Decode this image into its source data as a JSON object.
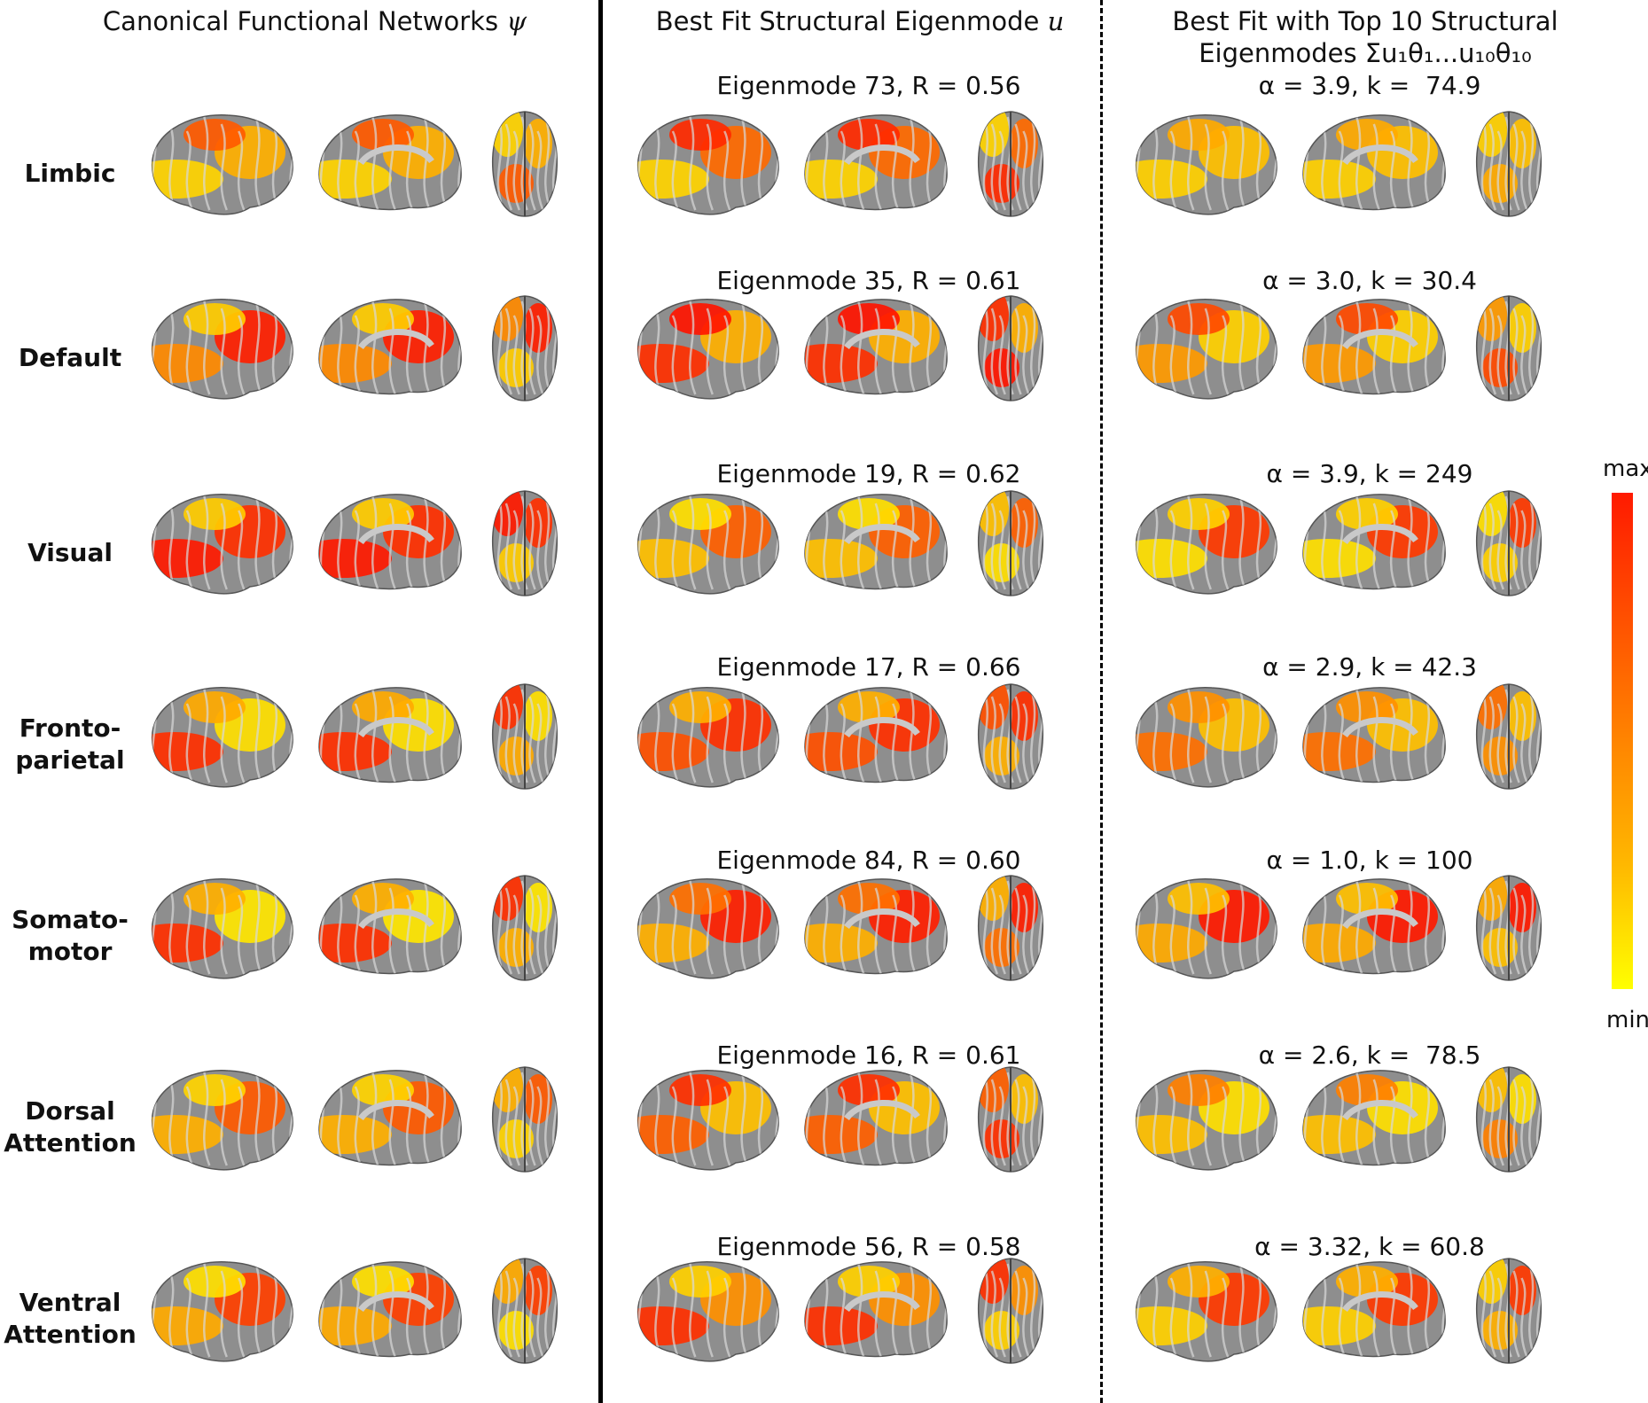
{
  "headers": {
    "col1": "Canonical Functional Networks",
    "col1_symbol": "ψ",
    "col2": "Best Fit Structural Eigenmode",
    "col2_symbol": "u",
    "col3_line1": "Best Fit with Top 10 Structural",
    "col3_line2": "Eigenmodes Σu₁θ₁...u₁₀θ₁₀"
  },
  "rows": [
    {
      "label": "Limbic",
      "eigen": "Eigenmode 73, R = 0.56",
      "fit": "α = 3.9, k =  74.9",
      "left": [
        "#ffd400",
        "#ffb000",
        "#ff5a00"
      ],
      "mid": [
        "#ffd400",
        "#ff6a00",
        "#ff2a00"
      ],
      "right": [
        "#ffd000",
        "#ffc000",
        "#ffaa00"
      ]
    },
    {
      "label": "Default",
      "eigen": "Eigenmode 35, R = 0.61",
      "fit": "α = 3.0, k = 30.4",
      "left": [
        "#ff8a00",
        "#ff2000",
        "#ffcc00"
      ],
      "mid": [
        "#ff3000",
        "#ffb000",
        "#ff1500"
      ],
      "right": [
        "#ff9a00",
        "#ffd000",
        "#ff4a00"
      ]
    },
    {
      "label": "Visual",
      "eigen": "Eigenmode 19, R = 0.62",
      "fit": "α = 3.9, k = 249",
      "left": [
        "#ff1a00",
        "#ff3000",
        "#ffcc00"
      ],
      "mid": [
        "#ffc000",
        "#ff6000",
        "#ffe000"
      ],
      "right": [
        "#ffe000",
        "#ff3a00",
        "#ffd000"
      ]
    },
    {
      "label": "Fronto-\nparietal",
      "eigen": "Eigenmode 17, R = 0.66",
      "fit": "α = 2.9, k = 42.3",
      "left": [
        "#ff3000",
        "#ffe000",
        "#ffaa00"
      ],
      "mid": [
        "#ff5000",
        "#ff3000",
        "#ffb000"
      ],
      "right": [
        "#ff7000",
        "#ffc000",
        "#ff9000"
      ]
    },
    {
      "label": "Somato-\nmotor",
      "eigen": "Eigenmode 84, R = 0.60",
      "fit": "α = 1.0, k = 100",
      "left": [
        "#ff3000",
        "#ffe600",
        "#ffb000"
      ],
      "mid": [
        "#ffb000",
        "#ff2000",
        "#ff7000"
      ],
      "right": [
        "#ffaa00",
        "#ff1a00",
        "#ffc000"
      ]
    },
    {
      "label": "Dorsal\nAttention",
      "eigen": "Eigenmode 16, R = 0.61",
      "fit": "α = 2.6, k =  78.5",
      "left": [
        "#ffb000",
        "#ff5a00",
        "#ffd400"
      ],
      "mid": [
        "#ff6000",
        "#ffc000",
        "#ff3000"
      ],
      "right": [
        "#ffc000",
        "#ffe000",
        "#ff8000"
      ]
    },
    {
      "label": "Ventral\nAttention",
      "eigen": "Eigenmode 56, R = 0.58",
      "fit": "α = 3.32, k = 60.8",
      "left": [
        "#ffaa00",
        "#ff4000",
        "#ffe000"
      ],
      "mid": [
        "#ff3000",
        "#ff9000",
        "#ffd000"
      ],
      "right": [
        "#ffd000",
        "#ff3a00",
        "#ffb000"
      ]
    }
  ],
  "colorbar": {
    "max_label": "max",
    "min_label": "min"
  }
}
